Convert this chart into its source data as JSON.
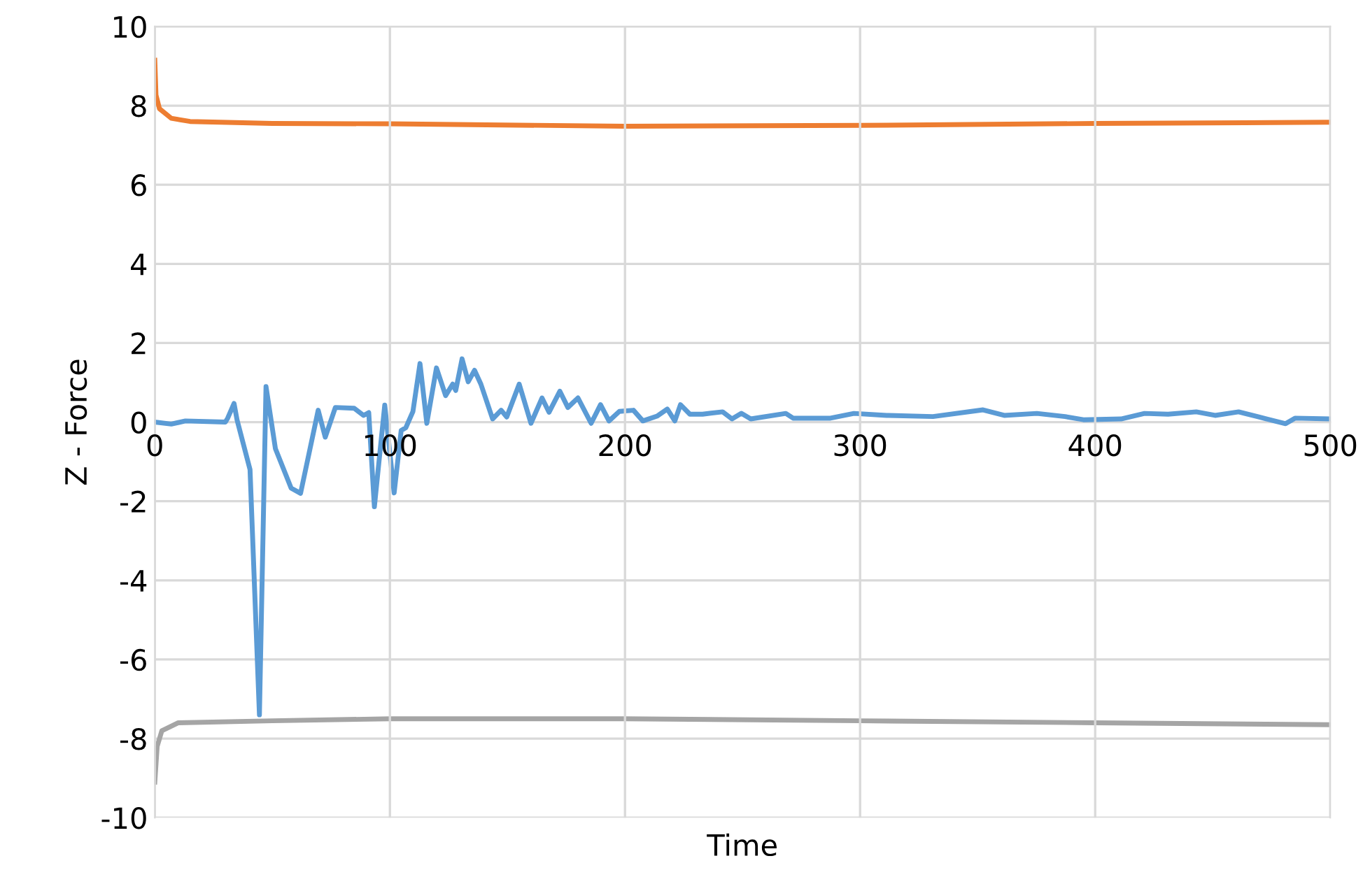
{
  "chart_data": {
    "type": "line",
    "xlabel": "Time",
    "ylabel": "Z - Force",
    "xlim": [
      0,
      500
    ],
    "ylim": [
      -10,
      10
    ],
    "xticks": [
      0,
      100,
      200,
      300,
      400,
      500
    ],
    "yticks": [
      -10,
      -8,
      -6,
      -4,
      -2,
      0,
      2,
      4,
      6,
      8,
      10
    ],
    "grid": true,
    "marker": "none",
    "line_style": "solid",
    "series": [
      {
        "color": "#5b9bd5",
        "x": [
          0,
          7,
          13,
          30,
          31,
          33.7,
          35,
          40.5,
          44.5,
          47.3,
          51.3,
          58,
          62,
          69.5,
          72.5,
          76.8,
          84.8,
          88.8,
          91,
          93.4,
          97.8,
          101.8,
          104.8,
          106.8,
          109.8,
          112.8,
          115.7,
          119.8,
          123.7,
          126.7,
          128,
          130.7,
          133.3,
          136,
          138.7,
          143.7,
          147.3,
          149.7,
          155,
          160,
          164.7,
          167.7,
          172.3,
          175.7,
          180,
          185.6,
          189.6,
          193.2,
          197.6,
          203.6,
          207.6,
          213.6,
          218,
          221.2,
          223.6,
          227.6,
          233,
          241.5,
          245.5,
          249.5,
          253.5,
          268.4,
          271.5,
          287.4,
          297.4,
          311.3,
          331,
          352.3,
          361.3,
          375.2,
          387.2,
          395,
          411,
          421,
          431,
          443,
          451,
          461,
          469,
          473,
          481,
          485,
          500
        ],
        "values": [
          0,
          -0.05,
          0.03,
          0,
          0.1,
          0.47,
          0.05,
          -1.2,
          -7.4,
          0.9,
          -0.67,
          -1.67,
          -1.8,
          0.3,
          -0.38,
          0.37,
          0.35,
          0.17,
          0.24,
          -2.14,
          0.43,
          -1.79,
          -0.21,
          -0.14,
          0.27,
          1.48,
          -0.03,
          1.37,
          0.67,
          0.96,
          0.8,
          1.6,
          1.02,
          1.31,
          0.96,
          0.08,
          0.3,
          0.13,
          0.96,
          -0.03,
          0.61,
          0.25,
          0.78,
          0.37,
          0.61,
          -0.03,
          0.44,
          0.03,
          0.27,
          0.3,
          0.03,
          0.15,
          0.33,
          0.03,
          0.44,
          0.2,
          0.2,
          0.26,
          0.08,
          0.22,
          0.08,
          0.22,
          0.1,
          0.1,
          0.22,
          0.17,
          0.14,
          0.31,
          0.17,
          0.22,
          0.14,
          0.06,
          0.08,
          0.22,
          0.2,
          0.26,
          0.17,
          0.26,
          0.14,
          0.08,
          -0.04,
          0.1,
          0.08
        ]
      },
      {
        "color": "#ed7d31",
        "x": [
          0,
          0.5,
          2,
          7,
          15,
          50,
          100,
          200,
          300,
          400,
          500
        ],
        "values": [
          9.15,
          8.27,
          7.92,
          7.68,
          7.6,
          7.55,
          7.54,
          7.48,
          7.5,
          7.55,
          7.58
        ]
      },
      {
        "color": "#a5a5a5",
        "x": [
          0,
          1,
          3,
          10,
          50,
          100,
          200,
          300,
          400,
          500
        ],
        "values": [
          -9.1,
          -8.2,
          -7.8,
          -7.6,
          -7.55,
          -7.5,
          -7.5,
          -7.55,
          -7.6,
          -7.65
        ]
      }
    ]
  }
}
